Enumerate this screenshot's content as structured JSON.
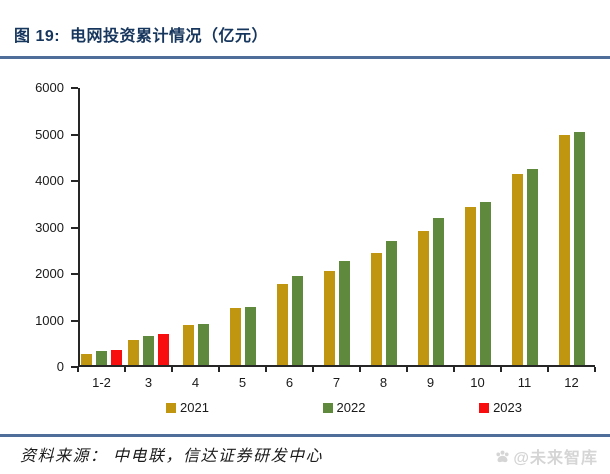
{
  "header": {
    "title": "图 19:  电网投资累计情况（亿元）"
  },
  "footer": {
    "source_label": "资料来源： 中电联，信达证券研发中心",
    "watermark": "@未来智库"
  },
  "colors": {
    "title": "#17365D",
    "rule": "#4F6E99",
    "axis": "#262626",
    "watermark": "#D5D5D5"
  },
  "chart_data": {
    "type": "bar",
    "title": "电网投资累计情况（亿元）",
    "xlabel": "",
    "ylabel": "",
    "categories": [
      "1-2",
      "3",
      "4",
      "5",
      "6",
      "7",
      "8",
      "9",
      "10",
      "11",
      "12"
    ],
    "series": [
      {
        "name": "2021",
        "color": "#C0950F",
        "values": [
          236,
          540,
          857,
          1225,
          1734,
          2029,
          2409,
          2891,
          3408,
          4102,
          4951
        ]
      },
      {
        "name": "2022",
        "color": "#5F8A3D",
        "values": [
          293,
          621,
          881,
          1250,
          1905,
          2239,
          2667,
          3154,
          3511,
          4209,
          5012
        ]
      },
      {
        "name": "2023",
        "color": "#F80E0E",
        "values": [
          319,
          668,
          null,
          null,
          null,
          null,
          null,
          null,
          null,
          null,
          null
        ]
      }
    ],
    "ylim": [
      0,
      6000
    ],
    "yticks": [
      0,
      1000,
      2000,
      3000,
      4000,
      5000,
      6000
    ],
    "grid": false,
    "legend_position": "bottom"
  }
}
